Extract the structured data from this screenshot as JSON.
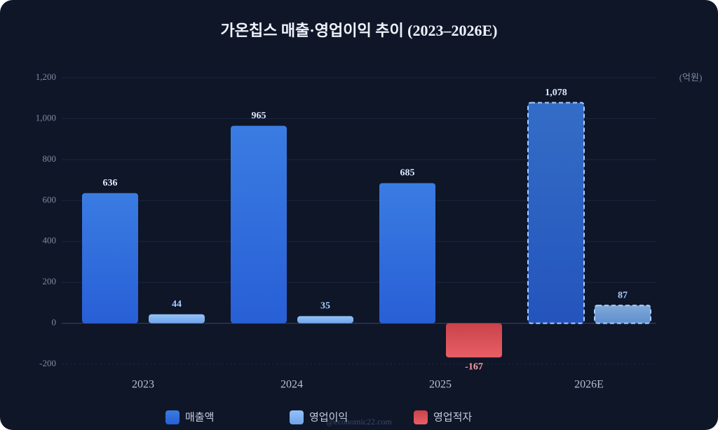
{
  "chart_data": {
    "type": "bar",
    "title": "가온칩스 매출·영업이익 추이 (2023–2026E)",
    "unit_label": "(억원)",
    "categories": [
      "2023",
      "2024",
      "2025",
      "2026E"
    ],
    "series": [
      {
        "name": "매출액",
        "color": "#3576e4",
        "values": [
          636,
          965,
          685,
          1078
        ],
        "value_labels": [
          "636",
          "965",
          "685",
          "1,078"
        ]
      },
      {
        "name": "영업이익",
        "color": "#7fb4f2",
        "values": [
          44,
          35,
          null,
          87
        ]
      },
      {
        "name": "영업적자",
        "color": "#e5575c",
        "values": [
          null,
          null,
          -167,
          null
        ]
      }
    ],
    "ylim": [
      -200,
      1200
    ],
    "yticks": [
      -200,
      0,
      200,
      400,
      600,
      800,
      {
        "value": 1000,
        "label": "1,000"
      },
      {
        "value": 1200,
        "label": "1,200"
      }
    ],
    "grid": true,
    "dashed_categories": [
      3
    ],
    "watermark": "@economic22.com"
  }
}
